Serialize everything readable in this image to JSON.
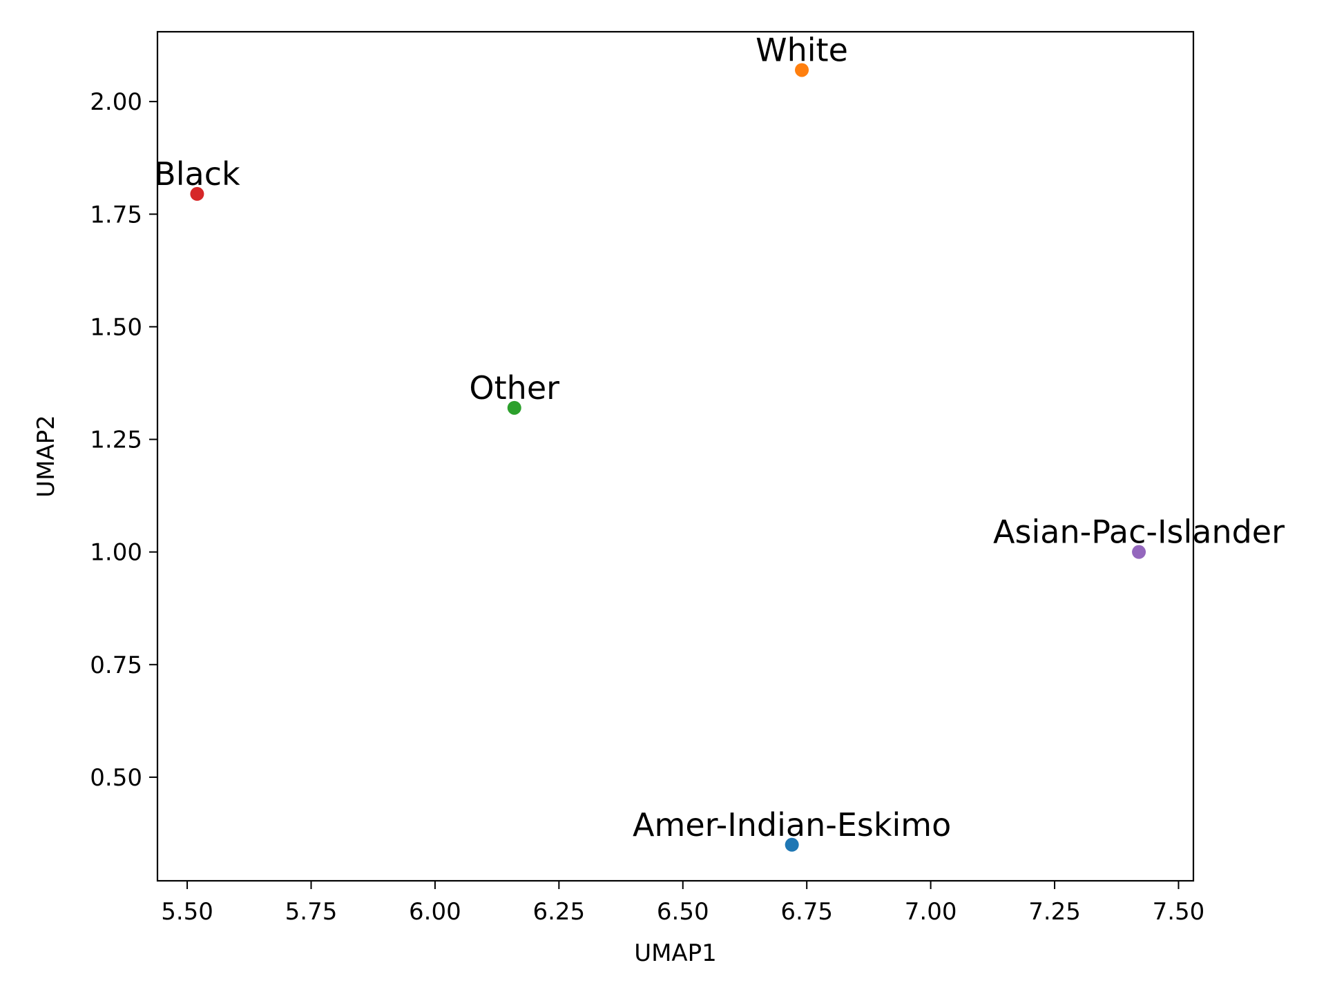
{
  "chart_data": {
    "type": "scatter",
    "title": "",
    "xlabel": "UMAP1",
    "ylabel": "UMAP2",
    "xlim": [
      5.44,
      7.53
    ],
    "ylim": [
      0.27,
      2.155
    ],
    "grid": false,
    "x_ticks": [
      "5.50",
      "5.75",
      "6.00",
      "6.25",
      "6.50",
      "6.75",
      "7.00",
      "7.25",
      "7.50"
    ],
    "y_ticks": [
      "0.50",
      "0.75",
      "1.00",
      "1.25",
      "1.50",
      "1.75",
      "2.00"
    ],
    "points": [
      {
        "label": "Amer-Indian-Eskimo",
        "x": 6.72,
        "y": 0.35,
        "color": "#1f77b4"
      },
      {
        "label": "White",
        "x": 6.74,
        "y": 2.07,
        "color": "#ff7f0e"
      },
      {
        "label": "Other",
        "x": 6.16,
        "y": 1.32,
        "color": "#2ca02c"
      },
      {
        "label": "Black",
        "x": 5.52,
        "y": 1.795,
        "color": "#d62728"
      },
      {
        "label": "Asian-Pac-Islander",
        "x": 7.42,
        "y": 1.0,
        "color": "#9467bd"
      }
    ]
  }
}
